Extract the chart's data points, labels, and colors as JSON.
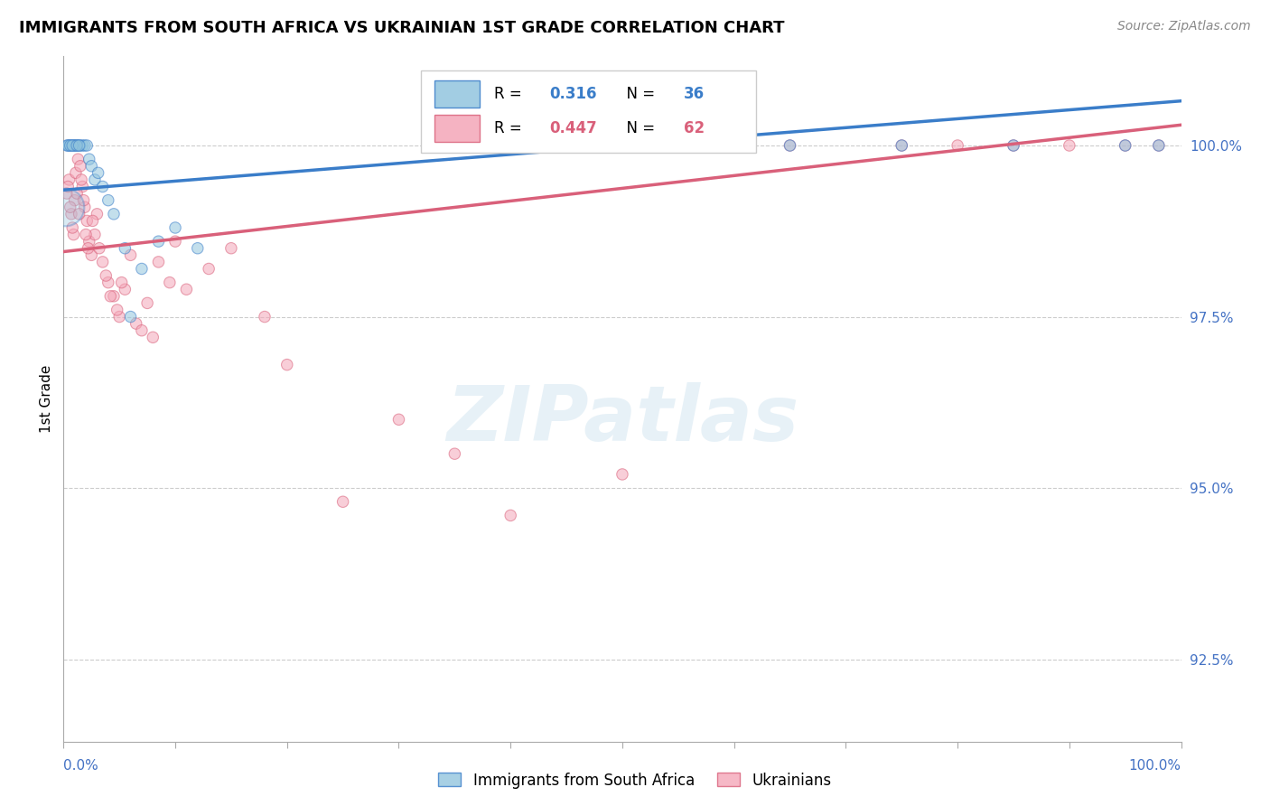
{
  "title": "IMMIGRANTS FROM SOUTH AFRICA VS UKRAINIAN 1ST GRADE CORRELATION CHART",
  "source": "Source: ZipAtlas.com",
  "ylabel": "1st Grade",
  "legend_blue_r_val": "0.316",
  "legend_blue_n_val": "36",
  "legend_pink_r_val": "0.447",
  "legend_pink_n_val": "62",
  "legend1_label": "Immigrants from South Africa",
  "legend2_label": "Ukrainians",
  "blue_color": "#92c5de",
  "pink_color": "#f4a6b8",
  "blue_line_color": "#3a7dc9",
  "pink_line_color": "#d9607a",
  "watermark_text": "ZIPatlas",
  "xlim": [
    0.0,
    100.0
  ],
  "ylim": [
    91.3,
    101.3
  ],
  "yticks": [
    92.5,
    95.0,
    97.5,
    100.0
  ],
  "ytick_labels": [
    "92.5%",
    "95.0%",
    "97.5%",
    "100.0%"
  ],
  "blue_line_x0": 0.0,
  "blue_line_x1": 100.0,
  "blue_line_y0": 99.35,
  "blue_line_y1": 100.65,
  "pink_line_x0": 0.0,
  "pink_line_x1": 100.0,
  "pink_line_y0": 98.45,
  "pink_line_y1": 100.3,
  "blue_x": [
    0.5,
    0.7,
    0.9,
    1.0,
    1.1,
    1.3,
    1.5,
    1.7,
    1.9,
    2.1,
    2.3,
    2.5,
    2.8,
    3.1,
    3.5,
    4.0,
    4.5,
    5.5,
    7.0,
    8.5,
    10.0,
    12.0,
    45.0,
    55.0,
    65.0,
    75.0,
    85.0,
    95.0,
    98.0,
    0.3,
    0.4,
    0.6,
    0.8,
    1.2,
    1.4,
    6.0
  ],
  "blue_y": [
    100.0,
    100.0,
    100.0,
    100.0,
    100.0,
    100.0,
    100.0,
    100.0,
    100.0,
    100.0,
    99.8,
    99.7,
    99.5,
    99.6,
    99.4,
    99.2,
    99.0,
    98.5,
    98.2,
    98.6,
    98.8,
    98.5,
    100.0,
    100.0,
    100.0,
    100.0,
    100.0,
    100.0,
    100.0,
    100.0,
    100.0,
    100.0,
    100.0,
    100.0,
    100.0,
    97.5
  ],
  "blue_sizes": [
    80,
    80,
    80,
    80,
    80,
    80,
    80,
    80,
    80,
    80,
    80,
    80,
    80,
    80,
    80,
    80,
    80,
    80,
    80,
    80,
    80,
    80,
    80,
    80,
    80,
    80,
    80,
    80,
    80,
    80,
    80,
    80,
    80,
    80,
    80,
    80
  ],
  "blue_large_x": [
    0.15
  ],
  "blue_large_y": [
    99.1
  ],
  "blue_large_size": [
    900
  ],
  "pink_x": [
    0.3,
    0.5,
    0.7,
    0.9,
    1.0,
    1.1,
    1.3,
    1.5,
    1.7,
    1.9,
    2.1,
    2.3,
    2.5,
    2.8,
    3.0,
    3.2,
    3.5,
    4.0,
    4.5,
    5.0,
    5.5,
    6.5,
    7.5,
    8.5,
    9.5,
    11.0,
    13.0,
    15.0,
    18.0,
    45.0,
    55.0,
    65.0,
    75.0,
    80.0,
    85.0,
    90.0,
    95.0,
    98.0,
    0.4,
    0.6,
    0.8,
    1.2,
    1.4,
    1.6,
    1.8,
    2.0,
    2.2,
    2.6,
    3.8,
    4.2,
    4.8,
    5.2,
    6.0,
    7.0,
    8.0,
    10.0,
    20.0,
    25.0,
    30.0,
    35.0,
    40.0,
    50.0
  ],
  "pink_y": [
    99.3,
    99.5,
    99.0,
    98.7,
    99.2,
    99.6,
    99.8,
    99.7,
    99.4,
    99.1,
    98.9,
    98.6,
    98.4,
    98.7,
    99.0,
    98.5,
    98.3,
    98.0,
    97.8,
    97.5,
    97.9,
    97.4,
    97.7,
    98.3,
    98.0,
    97.9,
    98.2,
    98.5,
    97.5,
    100.0,
    100.0,
    100.0,
    100.0,
    100.0,
    100.0,
    100.0,
    100.0,
    100.0,
    99.4,
    99.1,
    98.8,
    99.3,
    99.0,
    99.5,
    99.2,
    98.7,
    98.5,
    98.9,
    98.1,
    97.8,
    97.6,
    98.0,
    98.4,
    97.3,
    97.2,
    98.6,
    96.8,
    94.8,
    96.0,
    95.5,
    94.6,
    95.2
  ],
  "pink_sizes": [
    80,
    80,
    80,
    80,
    80,
    80,
    80,
    80,
    80,
    80,
    80,
    80,
    80,
    80,
    80,
    80,
    80,
    80,
    80,
    80,
    80,
    80,
    80,
    80,
    80,
    80,
    80,
    80,
    80,
    80,
    80,
    80,
    80,
    80,
    80,
    80,
    80,
    80,
    80,
    80,
    80,
    80,
    80,
    80,
    80,
    80,
    80,
    80,
    80,
    80,
    80,
    80,
    80,
    80,
    80,
    80,
    80,
    80,
    80,
    80,
    80,
    80
  ],
  "background_color": "#ffffff",
  "grid_color": "#cccccc",
  "xtick_positions": [
    0,
    10,
    20,
    30,
    40,
    50,
    60,
    70,
    80,
    90,
    100
  ]
}
